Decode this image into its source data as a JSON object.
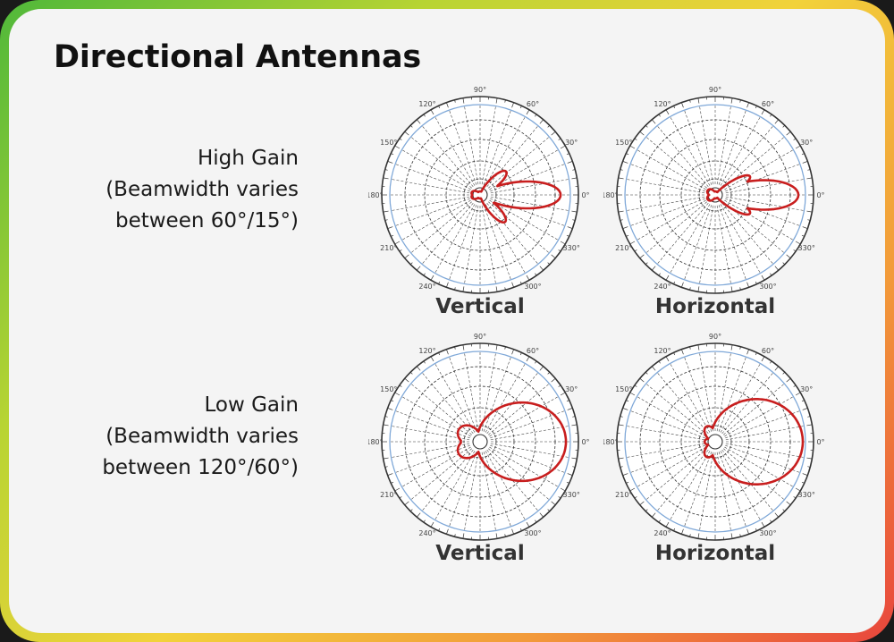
{
  "slide": {
    "title": "Directional Antennas"
  },
  "polar_axis": {
    "angle_labels": [
      {
        "deg": 0,
        "text": "0°"
      },
      {
        "deg": 30,
        "text": "30°"
      },
      {
        "deg": 60,
        "text": "60°"
      },
      {
        "deg": 90,
        "text": "90°"
      },
      {
        "deg": 120,
        "text": "120°"
      },
      {
        "deg": 150,
        "text": "150°"
      },
      {
        "deg": 180,
        "text": "180°"
      },
      {
        "deg": 210,
        "text": "210°"
      },
      {
        "deg": 240,
        "text": "240°"
      },
      {
        "deg": 270,
        "text": "270°"
      },
      {
        "deg": 300,
        "text": "300°"
      },
      {
        "deg": 330,
        "text": "330°"
      }
    ],
    "colors": {
      "grid": "#333333",
      "outer_ring": "#7fa8d8",
      "pattern": "#c81e1e"
    }
  },
  "groups": [
    {
      "caption_lines": [
        "High Gain",
        "(Beamwidth varies",
        "between 60°/15°)"
      ],
      "patterns": [
        {
          "label": "Vertical",
          "lobes": [
            {
              "angle": 0,
              "radius": 0.92,
              "width": 16
            },
            {
              "angle": 42,
              "radius": 0.4,
              "width": 13
            },
            {
              "angle": -47,
              "radius": 0.42,
              "width": 13
            },
            {
              "angle": 165,
              "radius": 0.1,
              "width": 30
            },
            {
              "angle": -165,
              "radius": 0.1,
              "width": 30
            }
          ]
        },
        {
          "label": "Horizontal",
          "lobes": [
            {
              "angle": 0,
              "radius": 0.95,
              "width": 17
            },
            {
              "angle": 28,
              "radius": 0.45,
              "width": 11
            },
            {
              "angle": -28,
              "radius": 0.45,
              "width": 11
            },
            {
              "angle": 150,
              "radius": 0.1,
              "width": 35
            },
            {
              "angle": -150,
              "radius": 0.1,
              "width": 35
            }
          ]
        }
      ]
    },
    {
      "caption_lines": [
        "Low Gain",
        "(Beamwidth varies",
        "between 120°/60°)"
      ],
      "patterns": [
        {
          "label": "Vertical",
          "lobes": [
            {
              "angle": 0,
              "radius": 0.98,
              "width": 48
            },
            {
              "angle": 150,
              "radius": 0.28,
              "width": 38
            },
            {
              "angle": -150,
              "radius": 0.28,
              "width": 38
            },
            {
              "angle": 180,
              "radius": 0.22,
              "width": 30
            }
          ]
        },
        {
          "label": "Horizontal",
          "lobes": [
            {
              "angle": 0,
              "radius": 1.0,
              "width": 52
            },
            {
              "angle": 120,
              "radius": 0.2,
              "width": 28
            },
            {
              "angle": -120,
              "radius": 0.2,
              "width": 28
            },
            {
              "angle": 180,
              "radius": 0.12,
              "width": 30
            }
          ]
        }
      ]
    }
  ]
}
